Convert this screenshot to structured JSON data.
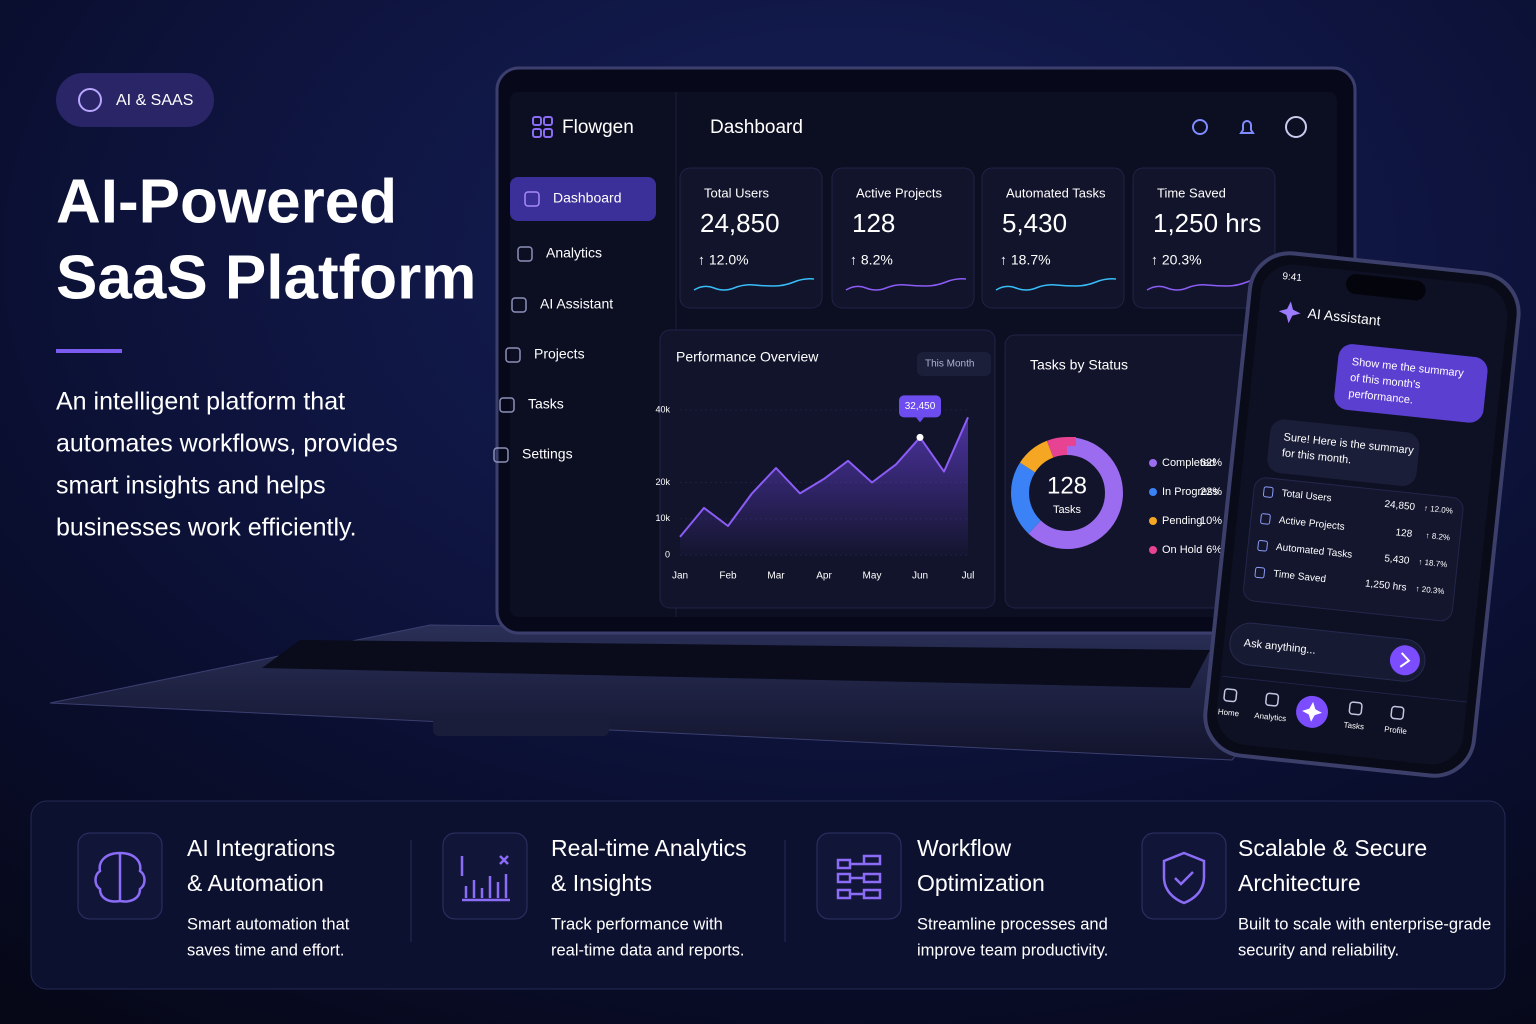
{
  "badge": "AI & SAAS",
  "hero": {
    "title_lines": [
      "AI-Powered",
      "SaaS Platform"
    ],
    "description_lines": [
      "An intelligent platform that",
      "automates workflows, provides",
      "smart insights and helps",
      "businesses work efficiently."
    ]
  },
  "laptop": {
    "brand": "Flowgen",
    "page_title": "Dashboard",
    "nav": [
      "Dashboard",
      "Analytics",
      "AI Assistant",
      "Projects",
      "Tasks",
      "Settings"
    ],
    "stats": [
      {
        "label": "Total Users",
        "value": "24,850",
        "change": "↑ 12.0%"
      },
      {
        "label": "Active Projects",
        "value": "128",
        "change": "↑ 8.2%"
      },
      {
        "label": "Automated Tasks",
        "value": "5,430",
        "change": "↑ 18.7%"
      },
      {
        "label": "Time Saved",
        "value": "1,250 hrs",
        "change": "↑ 20.3%"
      }
    ],
    "performance": {
      "type": "line",
      "title": "Performance Overview",
      "filter": "This Month",
      "categories": [
        "Jan",
        null,
        "Feb",
        null,
        "Mar",
        null,
        "Apr",
        null,
        "May",
        null,
        "Jun",
        null,
        "Jul"
      ],
      "values": [
        5000,
        13000,
        8000,
        17000,
        24000,
        17000,
        21000,
        26000,
        20000,
        25000,
        32450,
        23000,
        38000
      ],
      "value_labels": [
        null,
        null,
        null,
        null,
        null,
        null,
        null,
        null,
        null,
        null,
        "32,450",
        null,
        null
      ],
      "color": "#8b5cf6",
      "ylim": [
        0,
        40000
      ],
      "yticks": [
        0,
        {
          "value": 10000,
          "label": "10k"
        },
        {
          "value": 20000,
          "label": "20k"
        },
        {
          "value": 40000,
          "label": "40k"
        }
      ]
    },
    "tasks_by_status": {
      "type": "pie",
      "title": "Tasks by Status",
      "total": 128,
      "total_label": "Tasks",
      "categories": [
        "Completed",
        "In Progress",
        "Pending",
        "On Hold"
      ],
      "values": [
        62,
        22,
        10,
        6
      ],
      "value_labels": [
        "62%",
        "22%",
        "10%",
        "6%"
      ],
      "colors": [
        "#9b6cf0",
        "#3b82f6",
        "#f5a623",
        "#e84393"
      ]
    }
  },
  "phone": {
    "time": "9:41",
    "title": "AI Assistant",
    "user_message_lines": [
      "Show me the summary",
      "of this month's",
      "performance."
    ],
    "bot_message_lines": [
      "Sure! Here is the summary",
      "for this month."
    ],
    "summary": [
      {
        "label": "Total Users",
        "value": "24,850",
        "change": "↑ 12.0%"
      },
      {
        "label": "Active Projects",
        "value": "128",
        "change": "↑ 8.2%"
      },
      {
        "label": "Automated Tasks",
        "value": "5,430",
        "change": "↑ 18.7%"
      },
      {
        "label": "Time Saved",
        "value": "1,250 hrs",
        "change": "↑ 20.3%"
      }
    ],
    "input_placeholder": "Ask anything...",
    "tabs": [
      "Home",
      "Analytics",
      "Tasks",
      "Profile"
    ]
  },
  "features": [
    {
      "title_lines": [
        "AI Integrations",
        "& Automation"
      ],
      "description_lines": [
        "Smart automation that",
        "saves time and effort."
      ]
    },
    {
      "title_lines": [
        "Real-time Analytics",
        "& Insights"
      ],
      "description_lines": [
        "Track performance with",
        "real-time data and reports."
      ]
    },
    {
      "title_lines": [
        "Workflow",
        "Optimization"
      ],
      "description_lines": [
        "Streamline processes and",
        "improve team productivity."
      ]
    },
    {
      "title_lines": [
        "Scalable & Secure",
        "Architecture"
      ],
      "description_lines": [
        "Built to scale with enterprise-grade",
        "security and reliability."
      ]
    }
  ]
}
